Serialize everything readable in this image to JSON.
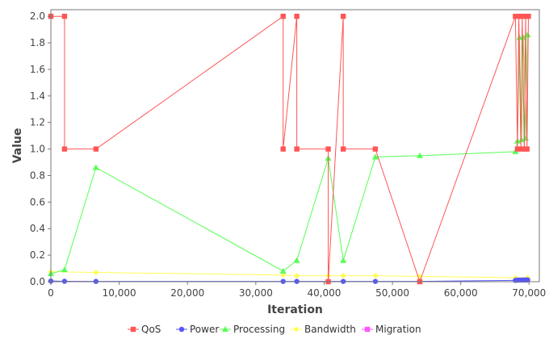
{
  "chart_data": {
    "type": "line",
    "xlabel": "Iteration",
    "ylabel": "Value",
    "xlim": [
      0,
      71500
    ],
    "ylim": [
      0,
      2.05
    ],
    "xticks": [
      0,
      10000,
      20000,
      30000,
      40000,
      50000,
      60000,
      70000
    ],
    "xtick_labels": [
      "0",
      "10,000",
      "20,000",
      "30,000",
      "40,000",
      "50,000",
      "60,000",
      "70,000"
    ],
    "yticks": [
      0.0,
      0.2,
      0.4,
      0.6,
      0.8,
      1.0,
      1.2,
      1.4,
      1.6,
      1.8,
      2.0
    ],
    "ytick_labels": [
      "0.0",
      "0.2",
      "0.4",
      "0.6",
      "0.8",
      "1.0",
      "1.2",
      "1.4",
      "1.6",
      "1.8",
      "2.0"
    ],
    "grid": false,
    "legend_position": "bottom",
    "series": [
      {
        "name": "QoS",
        "color": "#ff5555",
        "marker": "square",
        "x": [
          0,
          2000,
          2000,
          6600,
          34000,
          34000,
          36000,
          36000,
          40600,
          40600,
          42800,
          42800,
          47500,
          54000,
          68000,
          68300,
          68500,
          68800,
          69000,
          69300,
          69500,
          69700,
          69900
        ],
        "y": [
          2.0,
          2.0,
          1.0,
          1.0,
          2.0,
          1.0,
          2.0,
          1.0,
          1.0,
          0.0,
          2.0,
          1.0,
          1.0,
          0.0,
          2.0,
          1.0,
          2.0,
          1.0,
          2.0,
          1.0,
          2.0,
          1.0,
          2.0
        ]
      },
      {
        "name": "Power",
        "color": "#5555ff",
        "marker": "circle",
        "x": [
          0,
          2000,
          6600,
          34000,
          36000,
          40600,
          42800,
          47500,
          54000,
          68000,
          68300,
          68600,
          68900,
          69200,
          69500,
          69800
        ],
        "y": [
          0.005,
          0.003,
          0.002,
          0.002,
          0.002,
          0.002,
          0.002,
          0.002,
          0.002,
          0.01,
          0.012,
          0.012,
          0.012,
          0.013,
          0.013,
          0.013
        ]
      },
      {
        "name": "Processing",
        "color": "#55ff55",
        "marker": "triangle",
        "x": [
          0,
          2000,
          6600,
          34000,
          36000,
          40600,
          42800,
          47500,
          54000,
          68000,
          68300,
          68600,
          68900,
          69200,
          69500,
          69800
        ],
        "y": [
          0.06,
          0.09,
          0.86,
          0.08,
          0.16,
          0.93,
          0.16,
          0.94,
          0.95,
          0.98,
          1.06,
          1.84,
          1.07,
          1.84,
          1.08,
          1.86
        ]
      },
      {
        "name": "Bandwidth",
        "color": "#ffff55",
        "marker": "diamond",
        "x": [
          0,
          6600,
          34000,
          36000,
          40600,
          42800,
          47500,
          54000,
          68000,
          69800
        ],
        "y": [
          0.075,
          0.07,
          0.05,
          0.045,
          0.045,
          0.045,
          0.045,
          0.04,
          0.03,
          0.03
        ]
      },
      {
        "name": "Migration",
        "color": "#ff55ff",
        "marker": "square",
        "x": [
          0,
          69800
        ],
        "y": [
          0.0,
          0.0
        ]
      }
    ]
  }
}
